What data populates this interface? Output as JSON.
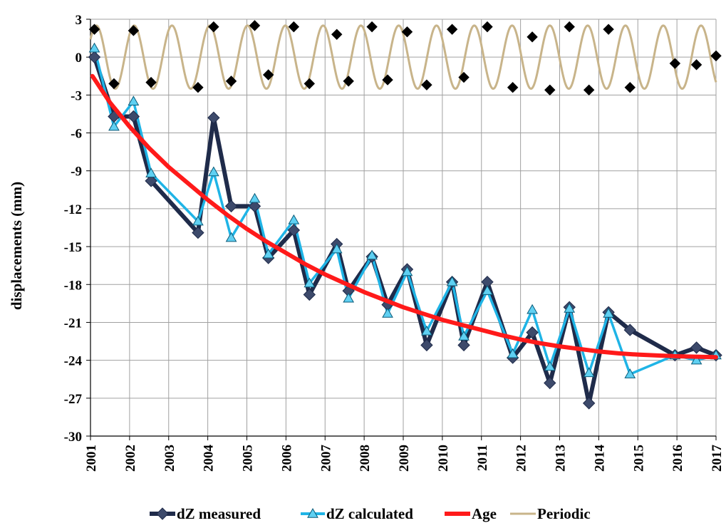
{
  "chart_data": {
    "type": "line",
    "ylabel": "displacements (mm)",
    "xlabel": "",
    "xlim": [
      2001,
      2017
    ],
    "ylim": [
      -30,
      3
    ],
    "x_ticks": [
      "2001",
      "2002",
      "2003",
      "2004",
      "2005",
      "2006",
      "2007",
      "2008",
      "2009",
      "2010",
      "2011",
      "2012",
      "2013",
      "2014",
      "2015",
      "2016",
      "2017"
    ],
    "y_ticks": [
      "3",
      "0",
      "-3",
      "-6",
      "-9",
      "-12",
      "-15",
      "-18",
      "-21",
      "-24",
      "-27",
      "-30"
    ],
    "grid": true,
    "legend_position": "bottom",
    "series": [
      {
        "name": "dZ measured",
        "color": "#1f2b4a",
        "marker": "diamond",
        "x": [
          2001.1,
          2001.6,
          2002.1,
          2002.55,
          2003.75,
          2004.15,
          2004.6,
          2005.2,
          2005.55,
          2006.2,
          2006.6,
          2007.3,
          2007.6,
          2008.2,
          2008.6,
          2009.1,
          2009.6,
          2010.25,
          2010.55,
          2011.15,
          2011.8,
          2012.3,
          2012.75,
          2013.25,
          2013.75,
          2014.25,
          2014.8,
          2015.95,
          2016.5,
          2017.0
        ],
        "y": [
          0.0,
          -4.7,
          -4.7,
          -9.8,
          -13.9,
          -4.8,
          -11.8,
          -11.8,
          -15.9,
          -13.7,
          -18.8,
          -14.8,
          -18.5,
          -15.8,
          -19.6,
          -16.8,
          -22.8,
          -17.8,
          -22.8,
          -17.8,
          -23.8,
          -21.8,
          -25.8,
          -19.8,
          -27.4,
          -20.2,
          -21.6,
          -23.6,
          -23.0,
          -23.6
        ]
      },
      {
        "name": "dZ calculated",
        "color": "#1fb4e6",
        "marker": "triangle",
        "x": [
          2001.1,
          2001.6,
          2002.1,
          2002.55,
          2003.75,
          2004.15,
          2004.6,
          2005.2,
          2005.55,
          2006.2,
          2006.6,
          2007.3,
          2007.6,
          2008.2,
          2008.6,
          2009.1,
          2009.6,
          2010.25,
          2010.55,
          2011.15,
          2011.8,
          2012.3,
          2012.75,
          2013.25,
          2013.75,
          2014.25,
          2014.8,
          2015.95,
          2016.5,
          2017.0
        ],
        "y": [
          0.7,
          -5.5,
          -3.5,
          -9.2,
          -13.0,
          -9.1,
          -14.3,
          -11.2,
          -15.6,
          -12.9,
          -17.9,
          -15.2,
          -19.1,
          -15.7,
          -20.3,
          -17.0,
          -21.7,
          -17.8,
          -22.1,
          -18.5,
          -23.5,
          -20.0,
          -24.5,
          -19.9,
          -25.0,
          -20.3,
          -25.1,
          -23.6,
          -24.0,
          -23.6
        ]
      },
      {
        "name": "Age",
        "color": "#ff1a1a",
        "marker": "none",
        "x": [
          2001.05,
          2001.5,
          2002.0,
          2002.5,
          2003.0,
          2003.5,
          2004.0,
          2004.5,
          2005.0,
          2005.5,
          2006.0,
          2006.5,
          2007.0,
          2007.5,
          2008.0,
          2008.5,
          2009.0,
          2009.5,
          2010.0,
          2010.5,
          2011.0,
          2011.5,
          2012.0,
          2012.5,
          2013.0,
          2013.5,
          2014.0,
          2014.5,
          2015.0,
          2015.5,
          2016.0,
          2016.5,
          2017.0
        ],
        "y": [
          -1.5,
          -3.6,
          -5.5,
          -7.2,
          -8.7,
          -10.0,
          -11.3,
          -12.5,
          -13.6,
          -14.6,
          -15.5,
          -16.4,
          -17.2,
          -17.9,
          -18.6,
          -19.2,
          -19.8,
          -20.3,
          -20.8,
          -21.2,
          -21.6,
          -22.0,
          -22.35,
          -22.65,
          -22.9,
          -23.1,
          -23.3,
          -23.45,
          -23.55,
          -23.62,
          -23.68,
          -23.72,
          -23.75
        ]
      },
      {
        "name": "Periodic",
        "color": "#c8b48a",
        "marker": "none",
        "function": "periodic",
        "amplitude": 2.5,
        "period": 0.9667,
        "phase_peak": 2001.15,
        "x_range": [
          2001.0,
          2017.0
        ]
      },
      {
        "name": "",
        "color": "#000000",
        "marker": "diamond",
        "x": [
          2001.1,
          2001.6,
          2002.1,
          2002.55,
          2003.75,
          2004.15,
          2004.6,
          2005.2,
          2005.55,
          2006.2,
          2006.6,
          2007.3,
          2007.6,
          2008.2,
          2008.6,
          2009.1,
          2009.6,
          2010.25,
          2010.55,
          2011.15,
          2011.8,
          2012.3,
          2012.75,
          2013.25,
          2013.75,
          2014.25,
          2014.8,
          2015.95,
          2016.5,
          2017.0
        ],
        "y": [
          2.2,
          -2.1,
          2.1,
          -2.0,
          -2.4,
          2.4,
          -1.9,
          2.5,
          -1.4,
          2.4,
          -2.1,
          1.8,
          -1.9,
          2.4,
          -1.8,
          2.0,
          -2.2,
          2.2,
          -1.6,
          2.4,
          -2.4,
          1.6,
          -2.6,
          2.4,
          -2.6,
          2.2,
          -2.4,
          -0.5,
          -0.6,
          0.1
        ]
      }
    ]
  }
}
